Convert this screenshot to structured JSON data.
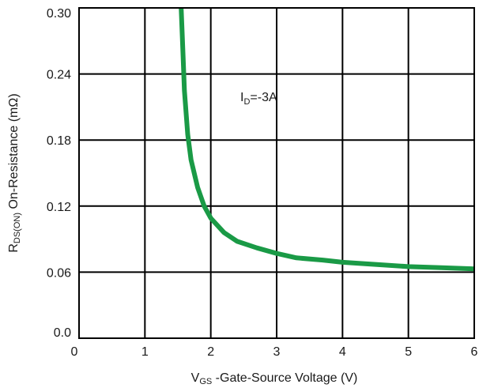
{
  "chart_data": {
    "type": "line",
    "xlabel": {
      "main": "V",
      "sub": "GS",
      "rest": " -Gate-Source Voltage (V)"
    },
    "ylabel": {
      "main": "R",
      "sub": "DS(ON)",
      "rest": " On-Resistance (mΩ)"
    },
    "xlim": [
      0,
      6
    ],
    "ylim": [
      0.0,
      0.3
    ],
    "x_ticks": [
      0,
      1,
      2,
      3,
      4,
      5,
      6
    ],
    "x_tick_labels": [
      "0",
      "1",
      "2",
      "3",
      "4",
      "5",
      "6"
    ],
    "y_ticks": [
      0.0,
      0.06,
      0.12,
      0.18,
      0.24,
      0.3
    ],
    "y_tick_labels": [
      "0.0",
      "0.06",
      "0.12",
      "0.18",
      "0.24",
      "0.30"
    ],
    "grid": true,
    "annotation": {
      "main": "I",
      "sub": "D",
      "rest": "=-3A"
    },
    "series": [
      {
        "color": "#1a9a46",
        "x": [
          1.55,
          1.58,
          1.6,
          1.65,
          1.7,
          1.8,
          1.9,
          2.0,
          2.2,
          2.4,
          2.7,
          3.0,
          3.3,
          3.7,
          4.0,
          4.5,
          5.0,
          5.5,
          6.0
        ],
        "y": [
          0.3,
          0.255,
          0.225,
          0.185,
          0.162,
          0.137,
          0.12,
          0.109,
          0.096,
          0.088,
          0.082,
          0.077,
          0.073,
          0.071,
          0.069,
          0.067,
          0.065,
          0.064,
          0.063
        ]
      }
    ]
  }
}
